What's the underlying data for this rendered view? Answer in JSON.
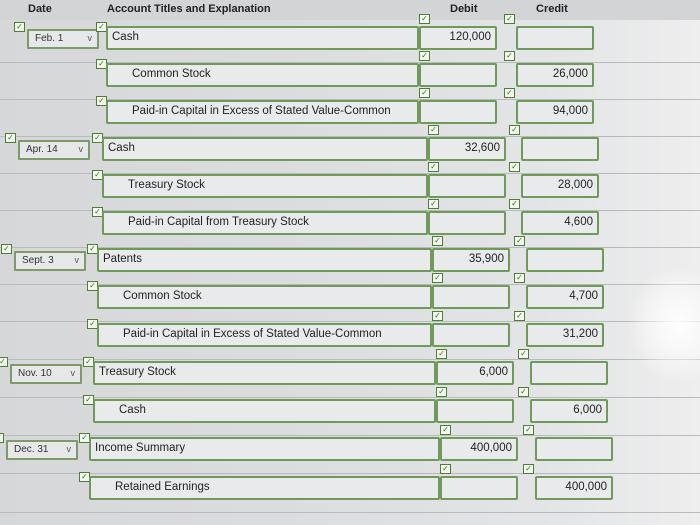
{
  "headers": {
    "date": "Date",
    "account": "Account Titles and Explanation",
    "debit": "Debit",
    "credit": "Credit"
  },
  "rows": [
    {
      "date": "Feb. 1",
      "account": "Cash",
      "debit": "120,000",
      "credit": ""
    },
    {
      "date": "",
      "account": "Common Stock",
      "debit": "",
      "credit": "26,000"
    },
    {
      "date": "",
      "account": "Paid-in Capital in Excess of Stated Value-Common",
      "debit": "",
      "credit": "94,000"
    },
    {
      "date": "Apr. 14",
      "account": "Cash",
      "debit": "32,600",
      "credit": ""
    },
    {
      "date": "",
      "account": "Treasury Stock",
      "debit": "",
      "credit": "28,000"
    },
    {
      "date": "",
      "account": "Paid-in Capital from Treasury Stock",
      "debit": "",
      "credit": "4,600"
    },
    {
      "date": "Sept. 3",
      "account": "Patents",
      "debit": "35,900",
      "credit": ""
    },
    {
      "date": "",
      "account": "Common Stock",
      "debit": "",
      "credit": "4,700"
    },
    {
      "date": "",
      "account": "Paid-in Capital in Excess of Stated Value-Common",
      "debit": "",
      "credit": "31,200"
    },
    {
      "date": "Nov. 10",
      "account": "Treasury Stock",
      "debit": "6,000",
      "credit": ""
    },
    {
      "date": "",
      "account": "Cash",
      "debit": "",
      "credit": "6,000"
    },
    {
      "date": "Dec. 31",
      "account": "Income Summary",
      "debit": "400,000",
      "credit": ""
    },
    {
      "date": "",
      "account": "Retained Earnings",
      "debit": "",
      "credit": "400,000"
    }
  ],
  "icons": {
    "check": "checkmark-icon",
    "dropdown": "chevron-down-icon"
  }
}
